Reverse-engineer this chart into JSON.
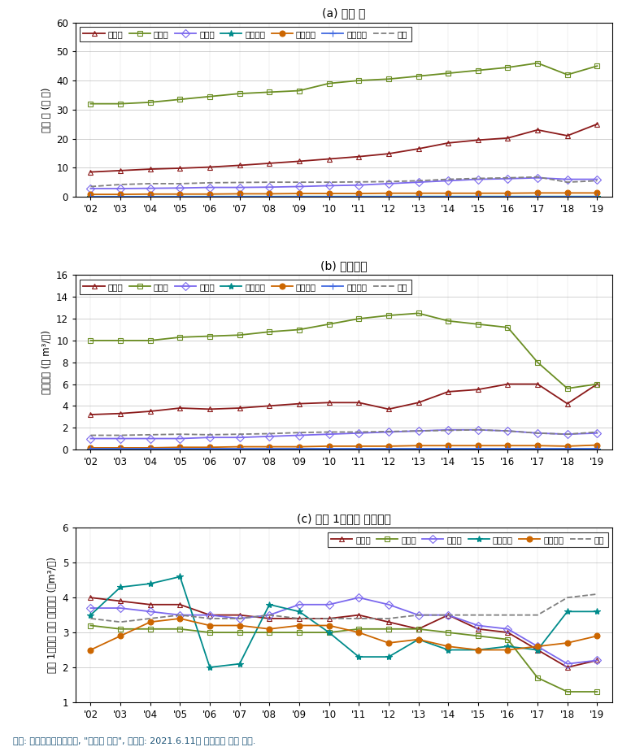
{
  "years": [
    2002,
    2003,
    2004,
    2005,
    2006,
    2007,
    2008,
    2009,
    2010,
    2011,
    2012,
    2013,
    2014,
    2015,
    2016,
    2017,
    2018,
    2019
  ],
  "xtick_labels": [
    "'02",
    "'03",
    "'04",
    "'05",
    "'06",
    "'07",
    "'08",
    "'09",
    "'10",
    "'11",
    "'12",
    "'13",
    "'14",
    "'15",
    "'16",
    "'17",
    "'18",
    "'19"
  ],
  "chart_a": {
    "title": "(a) 시설 수",
    "ylabel": "시설 수 (만 공)",
    "ylim": [
      0,
      60
    ],
    "yticks": [
      0,
      10,
      20,
      30,
      40,
      50,
      60
    ],
    "series": {
      "전작용": [
        8.5,
        9.0,
        9.5,
        9.8,
        10.2,
        10.8,
        11.5,
        12.2,
        13.0,
        13.8,
        14.8,
        16.5,
        18.5,
        19.5,
        20.2,
        23.0,
        21.0,
        25.0
      ],
      "답작용": [
        32.0,
        32.0,
        32.5,
        33.5,
        34.5,
        35.5,
        36.0,
        36.5,
        39.0,
        40.0,
        40.5,
        41.5,
        42.5,
        43.5,
        44.5,
        46.0,
        42.0,
        45.0
      ],
      "원예용": [
        2.8,
        2.8,
        2.9,
        3.0,
        3.2,
        3.2,
        3.3,
        3.5,
        3.8,
        4.0,
        4.5,
        5.0,
        5.5,
        6.0,
        6.2,
        6.5,
        6.0,
        6.0
      ],
      "수산업용": [
        0.05,
        0.05,
        0.05,
        0.06,
        0.07,
        0.07,
        0.07,
        0.08,
        0.08,
        0.08,
        0.08,
        0.09,
        0.09,
        0.09,
        0.09,
        0.09,
        0.09,
        0.09
      ],
      "축산업용": [
        0.8,
        0.8,
        0.9,
        0.9,
        0.9,
        1.0,
        1.0,
        1.1,
        1.1,
        1.1,
        1.2,
        1.2,
        1.2,
        1.2,
        1.2,
        1.3,
        1.3,
        1.3
      ],
      "양어장용": [
        0.1,
        0.1,
        0.1,
        0.1,
        0.1,
        0.1,
        0.1,
        0.1,
        0.1,
        0.1,
        0.1,
        0.1,
        0.1,
        0.1,
        0.1,
        0.1,
        0.1,
        0.1
      ],
      "기타": [
        3.5,
        4.2,
        4.5,
        4.5,
        4.8,
        4.9,
        5.0,
        5.0,
        5.0,
        5.1,
        5.2,
        5.5,
        6.0,
        6.3,
        6.5,
        6.8,
        5.0,
        5.5
      ]
    }
  },
  "chart_b": {
    "title": "(b) 연이용량",
    "ylabel": "연이용량 (억 m³/년)",
    "ylim": [
      0,
      16
    ],
    "yticks": [
      0,
      2,
      4,
      6,
      8,
      10,
      12,
      14,
      16
    ],
    "series": {
      "전작용": [
        3.2,
        3.3,
        3.5,
        3.8,
        3.7,
        3.8,
        4.0,
        4.2,
        4.3,
        4.3,
        3.7,
        4.3,
        5.3,
        5.5,
        6.0,
        6.0,
        4.2,
        6.0
      ],
      "답작용": [
        10.0,
        10.0,
        10.0,
        10.3,
        10.4,
        10.5,
        10.8,
        11.0,
        11.5,
        12.0,
        12.3,
        12.5,
        11.8,
        11.5,
        11.2,
        8.0,
        5.6,
        6.0
      ],
      "원예용": [
        1.0,
        1.0,
        1.0,
        1.0,
        1.1,
        1.1,
        1.2,
        1.3,
        1.4,
        1.5,
        1.6,
        1.7,
        1.8,
        1.8,
        1.7,
        1.5,
        1.4,
        1.5
      ],
      "수산업용": [
        0.02,
        0.02,
        0.02,
        0.02,
        0.02,
        0.02,
        0.02,
        0.02,
        0.02,
        0.02,
        0.03,
        0.03,
        0.03,
        0.03,
        0.03,
        0.03,
        0.02,
        0.03
      ],
      "축산업용": [
        0.15,
        0.15,
        0.15,
        0.2,
        0.2,
        0.25,
        0.25,
        0.25,
        0.3,
        0.3,
        0.3,
        0.35,
        0.35,
        0.35,
        0.35,
        0.35,
        0.3,
        0.4
      ],
      "양어장용": [
        0.05,
        0.05,
        0.05,
        0.05,
        0.05,
        0.05,
        0.05,
        0.05,
        0.05,
        0.05,
        0.05,
        0.05,
        0.05,
        0.05,
        0.05,
        0.05,
        0.05,
        0.05
      ],
      "기타": [
        1.3,
        1.3,
        1.35,
        1.4,
        1.35,
        1.4,
        1.45,
        1.55,
        1.6,
        1.6,
        1.65,
        1.7,
        1.75,
        1.8,
        1.7,
        1.5,
        1.4,
        1.6
      ]
    }
  },
  "chart_c": {
    "title": "(c) 시설 1개소당 연이용량",
    "ylabel": "시설 1개소당 평균 연이용량 (만m³/년)",
    "ylim": [
      1,
      6
    ],
    "yticks": [
      1,
      2,
      3,
      4,
      5,
      6
    ],
    "series": {
      "전작용": [
        4.0,
        3.9,
        3.8,
        3.8,
        3.5,
        3.5,
        3.4,
        3.4,
        3.4,
        3.5,
        3.3,
        3.1,
        3.5,
        3.1,
        3.0,
        2.5,
        2.0,
        2.2
      ],
      "답작용": [
        3.2,
        3.1,
        3.1,
        3.1,
        3.0,
        3.0,
        3.0,
        3.0,
        3.0,
        3.1,
        3.1,
        3.1,
        3.0,
        2.9,
        2.8,
        1.7,
        1.3,
        1.3
      ],
      "원예용": [
        3.7,
        3.7,
        3.6,
        3.5,
        3.5,
        3.4,
        3.5,
        3.8,
        3.8,
        4.0,
        3.8,
        3.5,
        3.5,
        3.2,
        3.1,
        2.6,
        2.1,
        2.2
      ],
      "수산업용": [
        3.5,
        4.3,
        4.4,
        4.6,
        2.0,
        2.1,
        3.8,
        3.6,
        3.0,
        2.3,
        2.3,
        2.8,
        2.5,
        2.5,
        2.6,
        2.5,
        3.6,
        3.6
      ],
      "축산업용": [
        2.5,
        2.9,
        3.3,
        3.4,
        3.2,
        3.2,
        3.1,
        3.2,
        3.2,
        3.0,
        2.7,
        2.8,
        2.6,
        2.5,
        2.5,
        2.6,
        2.7,
        2.9
      ],
      "기타": [
        3.4,
        3.3,
        3.4,
        3.5,
        3.4,
        3.4,
        3.5,
        3.4,
        3.4,
        3.4,
        3.4,
        3.5,
        3.5,
        3.5,
        3.5,
        3.5,
        4.0,
        4.1
      ]
    }
  },
  "series_styles": {
    "전작용": {
      "color": "#8B1A1A",
      "marker": "^",
      "linestyle": "-",
      "markersize": 5,
      "markerfacecolor": "none"
    },
    "답작용": {
      "color": "#6B8E23",
      "marker": "s",
      "linestyle": "-",
      "markersize": 5,
      "markerfacecolor": "none"
    },
    "원예용": {
      "color": "#7B68EE",
      "marker": "D",
      "linestyle": "-",
      "markersize": 5,
      "markerfacecolor": "none"
    },
    "수산업용": {
      "color": "#008B8B",
      "marker": "*",
      "linestyle": "-",
      "markersize": 6,
      "markerfacecolor": "#008B8B"
    },
    "축산업용": {
      "color": "#CC6600",
      "marker": "o",
      "linestyle": "-",
      "markersize": 5,
      "markerfacecolor": "#CC6600"
    },
    "양어장용": {
      "color": "#4169E1",
      "marker": "+",
      "linestyle": "-",
      "markersize": 6,
      "markerfacecolor": "#4169E1"
    },
    "기타": {
      "color": "#808080",
      "marker": "None",
      "linestyle": "--",
      "markersize": 5,
      "markerfacecolor": "none"
    }
  },
  "legend_order": [
    "전작용",
    "답작용",
    "원예용",
    "수산업용",
    "축산업용",
    "양어장용",
    "기타"
  ],
  "legend_order_c": [
    "전작용",
    "답작용",
    "원예용",
    "수산업용",
    "축산업용",
    "기타"
  ],
  "footnote": "자료: 국가지하수정보센터, \"지하수 통계\", 검색일: 2021.6.11을 이용하여 저자 작성."
}
